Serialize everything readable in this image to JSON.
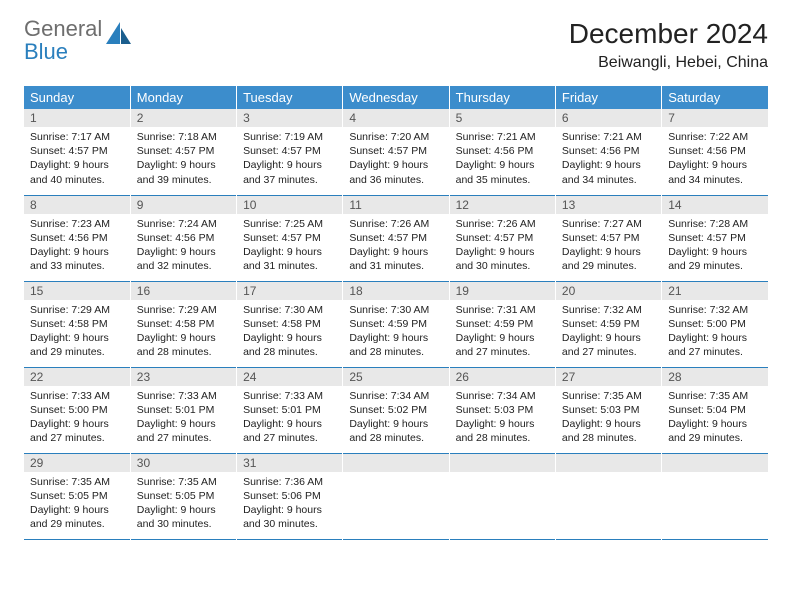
{
  "brand": {
    "word1": "General",
    "word2": "Blue",
    "color_gray": "#6e6e6e",
    "color_blue": "#2a7fbd"
  },
  "header": {
    "title": "December 2024",
    "location": "Beiwangli, Hebei, China"
  },
  "styling": {
    "header_row_bg": "#3c8dcc",
    "header_row_text": "#ffffff",
    "daynum_bg": "#e8e8e8",
    "daynum_text": "#555555",
    "row_border": "#2a7fbd",
    "body_text": "#222222",
    "page_bg": "#ffffff",
    "header_fontsize": 13,
    "title_fontsize": 28,
    "location_fontsize": 16,
    "cell_fontsize": 10.5
  },
  "weekdays": [
    "Sunday",
    "Monday",
    "Tuesday",
    "Wednesday",
    "Thursday",
    "Friday",
    "Saturday"
  ],
  "weeks": [
    [
      {
        "n": "1",
        "sr": "Sunrise: 7:17 AM",
        "ss": "Sunset: 4:57 PM",
        "d1": "Daylight: 9 hours",
        "d2": "and 40 minutes."
      },
      {
        "n": "2",
        "sr": "Sunrise: 7:18 AM",
        "ss": "Sunset: 4:57 PM",
        "d1": "Daylight: 9 hours",
        "d2": "and 39 minutes."
      },
      {
        "n": "3",
        "sr": "Sunrise: 7:19 AM",
        "ss": "Sunset: 4:57 PM",
        "d1": "Daylight: 9 hours",
        "d2": "and 37 minutes."
      },
      {
        "n": "4",
        "sr": "Sunrise: 7:20 AM",
        "ss": "Sunset: 4:57 PM",
        "d1": "Daylight: 9 hours",
        "d2": "and 36 minutes."
      },
      {
        "n": "5",
        "sr": "Sunrise: 7:21 AM",
        "ss": "Sunset: 4:56 PM",
        "d1": "Daylight: 9 hours",
        "d2": "and 35 minutes."
      },
      {
        "n": "6",
        "sr": "Sunrise: 7:21 AM",
        "ss": "Sunset: 4:56 PM",
        "d1": "Daylight: 9 hours",
        "d2": "and 34 minutes."
      },
      {
        "n": "7",
        "sr": "Sunrise: 7:22 AM",
        "ss": "Sunset: 4:56 PM",
        "d1": "Daylight: 9 hours",
        "d2": "and 34 minutes."
      }
    ],
    [
      {
        "n": "8",
        "sr": "Sunrise: 7:23 AM",
        "ss": "Sunset: 4:56 PM",
        "d1": "Daylight: 9 hours",
        "d2": "and 33 minutes."
      },
      {
        "n": "9",
        "sr": "Sunrise: 7:24 AM",
        "ss": "Sunset: 4:56 PM",
        "d1": "Daylight: 9 hours",
        "d2": "and 32 minutes."
      },
      {
        "n": "10",
        "sr": "Sunrise: 7:25 AM",
        "ss": "Sunset: 4:57 PM",
        "d1": "Daylight: 9 hours",
        "d2": "and 31 minutes."
      },
      {
        "n": "11",
        "sr": "Sunrise: 7:26 AM",
        "ss": "Sunset: 4:57 PM",
        "d1": "Daylight: 9 hours",
        "d2": "and 31 minutes."
      },
      {
        "n": "12",
        "sr": "Sunrise: 7:26 AM",
        "ss": "Sunset: 4:57 PM",
        "d1": "Daylight: 9 hours",
        "d2": "and 30 minutes."
      },
      {
        "n": "13",
        "sr": "Sunrise: 7:27 AM",
        "ss": "Sunset: 4:57 PM",
        "d1": "Daylight: 9 hours",
        "d2": "and 29 minutes."
      },
      {
        "n": "14",
        "sr": "Sunrise: 7:28 AM",
        "ss": "Sunset: 4:57 PM",
        "d1": "Daylight: 9 hours",
        "d2": "and 29 minutes."
      }
    ],
    [
      {
        "n": "15",
        "sr": "Sunrise: 7:29 AM",
        "ss": "Sunset: 4:58 PM",
        "d1": "Daylight: 9 hours",
        "d2": "and 29 minutes."
      },
      {
        "n": "16",
        "sr": "Sunrise: 7:29 AM",
        "ss": "Sunset: 4:58 PM",
        "d1": "Daylight: 9 hours",
        "d2": "and 28 minutes."
      },
      {
        "n": "17",
        "sr": "Sunrise: 7:30 AM",
        "ss": "Sunset: 4:58 PM",
        "d1": "Daylight: 9 hours",
        "d2": "and 28 minutes."
      },
      {
        "n": "18",
        "sr": "Sunrise: 7:30 AM",
        "ss": "Sunset: 4:59 PM",
        "d1": "Daylight: 9 hours",
        "d2": "and 28 minutes."
      },
      {
        "n": "19",
        "sr": "Sunrise: 7:31 AM",
        "ss": "Sunset: 4:59 PM",
        "d1": "Daylight: 9 hours",
        "d2": "and 27 minutes."
      },
      {
        "n": "20",
        "sr": "Sunrise: 7:32 AM",
        "ss": "Sunset: 4:59 PM",
        "d1": "Daylight: 9 hours",
        "d2": "and 27 minutes."
      },
      {
        "n": "21",
        "sr": "Sunrise: 7:32 AM",
        "ss": "Sunset: 5:00 PM",
        "d1": "Daylight: 9 hours",
        "d2": "and 27 minutes."
      }
    ],
    [
      {
        "n": "22",
        "sr": "Sunrise: 7:33 AM",
        "ss": "Sunset: 5:00 PM",
        "d1": "Daylight: 9 hours",
        "d2": "and 27 minutes."
      },
      {
        "n": "23",
        "sr": "Sunrise: 7:33 AM",
        "ss": "Sunset: 5:01 PM",
        "d1": "Daylight: 9 hours",
        "d2": "and 27 minutes."
      },
      {
        "n": "24",
        "sr": "Sunrise: 7:33 AM",
        "ss": "Sunset: 5:01 PM",
        "d1": "Daylight: 9 hours",
        "d2": "and 27 minutes."
      },
      {
        "n": "25",
        "sr": "Sunrise: 7:34 AM",
        "ss": "Sunset: 5:02 PM",
        "d1": "Daylight: 9 hours",
        "d2": "and 28 minutes."
      },
      {
        "n": "26",
        "sr": "Sunrise: 7:34 AM",
        "ss": "Sunset: 5:03 PM",
        "d1": "Daylight: 9 hours",
        "d2": "and 28 minutes."
      },
      {
        "n": "27",
        "sr": "Sunrise: 7:35 AM",
        "ss": "Sunset: 5:03 PM",
        "d1": "Daylight: 9 hours",
        "d2": "and 28 minutes."
      },
      {
        "n": "28",
        "sr": "Sunrise: 7:35 AM",
        "ss": "Sunset: 5:04 PM",
        "d1": "Daylight: 9 hours",
        "d2": "and 29 minutes."
      }
    ],
    [
      {
        "n": "29",
        "sr": "Sunrise: 7:35 AM",
        "ss": "Sunset: 5:05 PM",
        "d1": "Daylight: 9 hours",
        "d2": "and 29 minutes."
      },
      {
        "n": "30",
        "sr": "Sunrise: 7:35 AM",
        "ss": "Sunset: 5:05 PM",
        "d1": "Daylight: 9 hours",
        "d2": "and 30 minutes."
      },
      {
        "n": "31",
        "sr": "Sunrise: 7:36 AM",
        "ss": "Sunset: 5:06 PM",
        "d1": "Daylight: 9 hours",
        "d2": "and 30 minutes."
      },
      null,
      null,
      null,
      null
    ]
  ]
}
